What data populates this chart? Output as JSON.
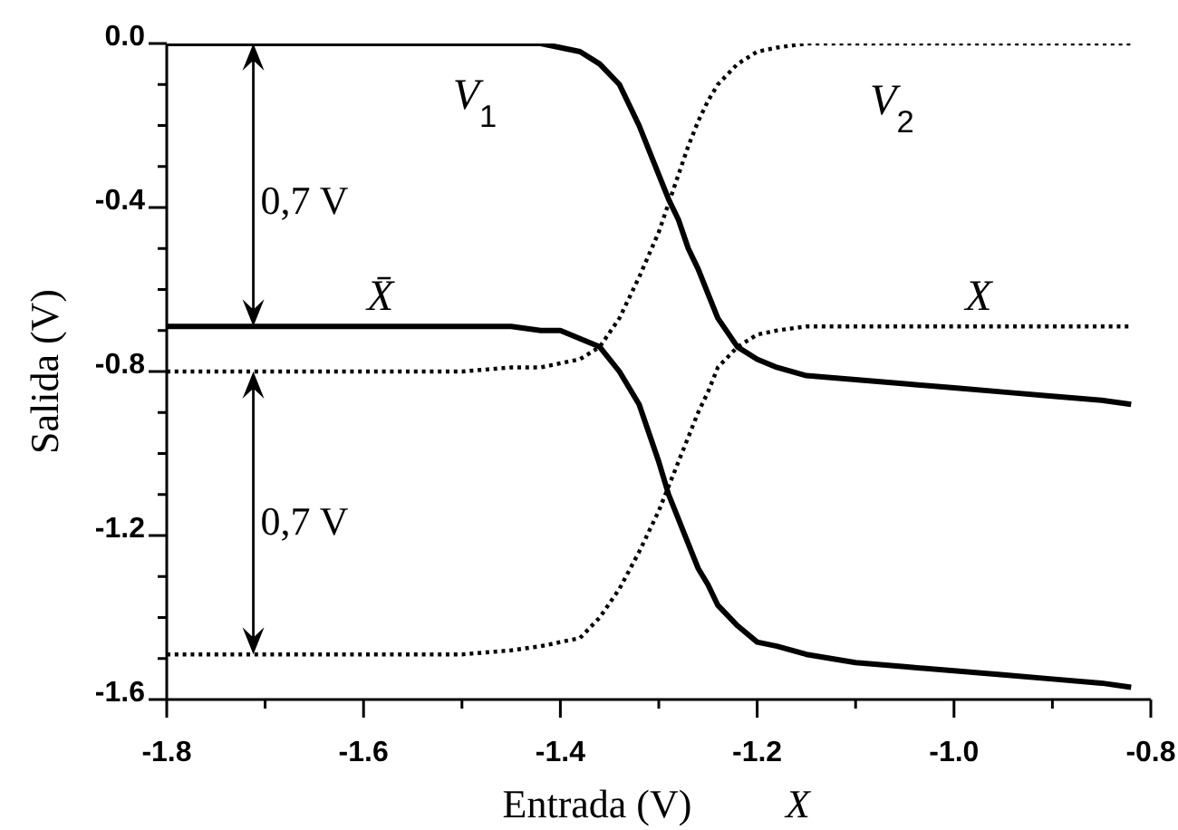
{
  "chart_data": {
    "type": "line",
    "xlabel": "Entrada (V)",
    "ylabel": "Salida (V)",
    "annotations": [
      "0,7 V",
      "0,7 V",
      "X"
    ],
    "x": [
      -1.8,
      -1.7,
      -1.6,
      -1.5,
      -1.45,
      -1.42,
      -1.4,
      -1.38,
      -1.36,
      -1.34,
      -1.32,
      -1.3,
      -1.29,
      -1.28,
      -1.27,
      -1.26,
      -1.25,
      -1.24,
      -1.22,
      -1.2,
      -1.18,
      -1.15,
      -1.1,
      -1.05,
      -1,
      -0.95,
      -0.9,
      -0.85,
      -0.82
    ],
    "series": [
      {
        "name": "V$_{1}$",
        "color": "#000000",
        "line_style": "solid",
        "values": [
          0,
          0,
          0,
          0,
          0,
          0,
          -0.01,
          -0.02,
          -0.05,
          -0.1,
          -0.2,
          -0.32,
          -0.38,
          -0.43,
          -0.5,
          -0.55,
          -0.61,
          -0.67,
          -0.74,
          -0.77,
          -0.79,
          -0.81,
          -0.82,
          -0.83,
          -0.84,
          -0.85,
          -0.86,
          -0.87,
          -0.88
        ]
      },
      {
        "name": "V$_{2}$",
        "color": "#000000",
        "line_style": "dotted",
        "values": [
          -0.8,
          -0.8,
          -0.8,
          -0.8,
          -0.79,
          -0.79,
          -0.78,
          -0.77,
          -0.74,
          -0.67,
          -0.57,
          -0.46,
          -0.39,
          -0.32,
          -0.25,
          -0.19,
          -0.14,
          -0.1,
          -0.05,
          -0.02,
          -0.01,
          0,
          0,
          0,
          0,
          0,
          0,
          0,
          0
        ]
      },
      {
        "name": "X̄",
        "color": "#000000",
        "line_style": "solid",
        "values": [
          -0.69,
          -0.69,
          -0.69,
          -0.69,
          -0.69,
          -0.7,
          -0.7,
          -0.72,
          -0.74,
          -0.8,
          -0.88,
          -1.02,
          -1.1,
          -1.16,
          -1.22,
          -1.28,
          -1.32,
          -1.37,
          -1.42,
          -1.46,
          -1.47,
          -1.49,
          -1.51,
          -1.52,
          -1.53,
          -1.54,
          -1.55,
          -1.56,
          -1.57
        ]
      },
      {
        "name": "X",
        "color": "#000000",
        "line_style": "dotted",
        "values": [
          -1.49,
          -1.49,
          -1.49,
          -1.49,
          -1.48,
          -1.47,
          -1.46,
          -1.45,
          -1.4,
          -1.33,
          -1.24,
          -1.14,
          -1.08,
          -1.02,
          -0.96,
          -0.9,
          -0.85,
          -0.79,
          -0.74,
          -0.71,
          -0.7,
          -0.69,
          -0.69,
          -0.69,
          -0.69,
          -0.69,
          -0.69,
          -0.69,
          -0.69
        ]
      }
    ],
    "xlim": [
      -1.8,
      -0.8
    ],
    "xticks": [
      -1.8,
      {
        "value": -1.7,
        "label": null
      },
      -1.6,
      {
        "value": -1.5,
        "label": null
      },
      -1.4,
      {
        "value": -1.3,
        "label": null
      },
      -1.2,
      {
        "value": -1.1,
        "label": null
      },
      {
        "value": -1,
        "label": "-1.0"
      },
      {
        "value": -0.9,
        "label": null
      },
      -0.8
    ],
    "ylim": [
      -1.6,
      0
    ],
    "yticks": [
      {
        "value": 0,
        "label": "0.0"
      },
      {
        "value": -0.1,
        "label": null
      },
      {
        "value": -0.2,
        "label": null
      },
      {
        "value": -0.3,
        "label": null
      },
      -0.4,
      {
        "value": -0.5,
        "label": null
      },
      {
        "value": -0.6,
        "label": null
      },
      {
        "value": -0.7,
        "label": null
      },
      -0.8,
      {
        "value": -0.9,
        "label": null
      },
      {
        "value": -1,
        "label": null
      },
      {
        "value": -1.1,
        "label": null
      },
      -1.2,
      {
        "value": -1.3,
        "label": null
      },
      {
        "value": -1.4,
        "label": null
      },
      {
        "value": -1.5,
        "label": null
      },
      -1.6
    ]
  }
}
